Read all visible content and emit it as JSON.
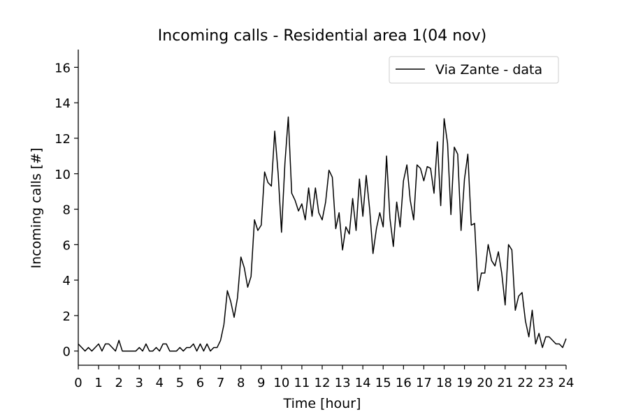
{
  "chart_data": {
    "type": "line",
    "title": "Incoming calls - Residential area 1(04 nov)",
    "xlabel": "Time [hour]",
    "ylabel": "Incoming calls [#]",
    "xlim": [
      0,
      24
    ],
    "ylim": [
      -0.8,
      17
    ],
    "xticks": [
      0,
      1,
      2,
      3,
      4,
      5,
      6,
      7,
      8,
      9,
      10,
      11,
      12,
      13,
      14,
      15,
      16,
      17,
      18,
      19,
      20,
      21,
      22,
      23,
      24
    ],
    "yticks": [
      0,
      2,
      4,
      6,
      8,
      10,
      12,
      14,
      16
    ],
    "grid": false,
    "legend_position": "top-right",
    "series": [
      {
        "name": "Via Zante - data",
        "color": "#000000",
        "x": [
          0,
          0.167,
          0.333,
          0.5,
          0.667,
          0.833,
          1.0,
          1.167,
          1.333,
          1.5,
          1.667,
          1.833,
          2.0,
          2.167,
          2.333,
          2.5,
          2.667,
          2.833,
          3.0,
          3.167,
          3.333,
          3.5,
          3.667,
          3.833,
          4.0,
          4.167,
          4.333,
          4.5,
          4.667,
          4.833,
          5.0,
          5.167,
          5.333,
          5.5,
          5.667,
          5.833,
          6.0,
          6.167,
          6.333,
          6.5,
          6.667,
          6.833,
          7.0,
          7.167,
          7.333,
          7.5,
          7.667,
          7.833,
          8.0,
          8.167,
          8.333,
          8.5,
          8.667,
          8.833,
          9.0,
          9.167,
          9.333,
          9.5,
          9.667,
          9.833,
          10.0,
          10.167,
          10.333,
          10.5,
          10.667,
          10.833,
          11.0,
          11.167,
          11.333,
          11.5,
          11.667,
          11.833,
          12.0,
          12.167,
          12.333,
          12.5,
          12.667,
          12.833,
          13.0,
          13.167,
          13.333,
          13.5,
          13.667,
          13.833,
          14.0,
          14.167,
          14.333,
          14.5,
          14.667,
          14.833,
          15.0,
          15.167,
          15.333,
          15.5,
          15.667,
          15.833,
          16.0,
          16.167,
          16.333,
          16.5,
          16.667,
          16.833,
          17.0,
          17.167,
          17.333,
          17.5,
          17.667,
          17.833,
          18.0,
          18.167,
          18.333,
          18.5,
          18.667,
          18.833,
          19.0,
          19.167,
          19.333,
          19.5,
          19.667,
          19.833,
          20.0,
          20.167,
          20.333,
          20.5,
          20.667,
          20.833,
          21.0,
          21.167,
          21.333,
          21.5,
          21.667,
          21.833,
          22.0,
          22.167,
          22.333,
          22.5,
          22.667,
          22.833,
          23.0,
          23.167,
          23.333,
          23.5,
          23.667,
          23.833,
          24.0
        ],
        "values": [
          0.4,
          0.2,
          0,
          0.2,
          0,
          0.2,
          0.4,
          0,
          0.4,
          0.4,
          0.2,
          0,
          0.6,
          0,
          0,
          0,
          0,
          0,
          0.2,
          0,
          0.4,
          0,
          0,
          0.2,
          0,
          0.4,
          0.4,
          0,
          0,
          0,
          0.2,
          0,
          0.2,
          0.2,
          0.4,
          0,
          0.4,
          0,
          0.4,
          0,
          0.2,
          0.2,
          0.6,
          1.5,
          3.4,
          2.8,
          1.9,
          3,
          5.3,
          4.7,
          3.6,
          4.2,
          7.4,
          6.8,
          7.1,
          10.1,
          9.5,
          9.3,
          12.4,
          10,
          6.7,
          10.6,
          13.2,
          8.9,
          8.5,
          7.9,
          8.3,
          7.4,
          9.2,
          7.6,
          9.2,
          7.8,
          7.4,
          8.4,
          10.2,
          9.8,
          6.9,
          7.8,
          5.7,
          7,
          6.6,
          8.6,
          6.8,
          9.7,
          7.6,
          9.9,
          8,
          5.5,
          6.9,
          7.8,
          7,
          11,
          7.5,
          5.9,
          8.4,
          7,
          9.6,
          10.5,
          8.5,
          7.4,
          10.5,
          10.3,
          9.6,
          10.4,
          10.3,
          8.9,
          11.8,
          8.2,
          13.1,
          11.7,
          7.7,
          11.5,
          11.1,
          6.8,
          9.7,
          11.1,
          7.1,
          7.2,
          3.4,
          4.4,
          4.4,
          6,
          5.1,
          4.8,
          5.6,
          4.4,
          2.6,
          6,
          5.7,
          2.3,
          3.1,
          3.3,
          1.7,
          0.8,
          2.3,
          0.4,
          1,
          0.2,
          0.8,
          0.8,
          0.6,
          0.4,
          0.4,
          0.2,
          0.7
        ]
      }
    ]
  }
}
